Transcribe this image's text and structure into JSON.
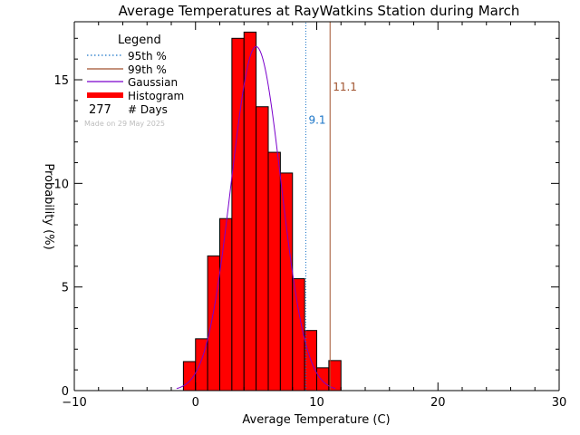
{
  "chart_data": {
    "type": "bar",
    "title": "Average Temperatures at RayWatkins Station during March",
    "xlabel": "Average Temperature (C)",
    "ylabel": "Probability  (%)",
    "xlim": [
      -10,
      30
    ],
    "ylim": [
      0,
      17.8
    ],
    "xticks": [
      -10,
      0,
      10,
      20,
      30
    ],
    "yticks": [
      0,
      5,
      10,
      15
    ],
    "grid": false,
    "legend": {
      "placement": "top-left",
      "title": "Legend",
      "entries": [
        {
          "label": "95th %",
          "color": "#1a75c8",
          "style": "dotted"
        },
        {
          "label": "99th %",
          "color": "#a0522d",
          "style": "solid"
        },
        {
          "label": "Gaussian",
          "color": "#7a00cc",
          "style": "solid"
        },
        {
          "label": "Histogram",
          "color": "#ff0000",
          "style": "thick"
        }
      ],
      "days_count": "277",
      "days_label": "# Days",
      "made_on": "Made on 29 May 2025"
    },
    "histogram": {
      "bin_width": 1,
      "bins": [
        {
          "x0": -1,
          "value": 1.4
        },
        {
          "x0": 0,
          "value": 2.5
        },
        {
          "x0": 1,
          "value": 6.5
        },
        {
          "x0": 2,
          "value": 8.3
        },
        {
          "x0": 3,
          "value": 17.0
        },
        {
          "x0": 4,
          "value": 17.3
        },
        {
          "x0": 5,
          "value": 13.7
        },
        {
          "x0": 6,
          "value": 11.5
        },
        {
          "x0": 7,
          "value": 10.5
        },
        {
          "x0": 8,
          "value": 5.4
        },
        {
          "x0": 9,
          "value": 2.9
        },
        {
          "x0": 10,
          "value": 1.1
        },
        {
          "x0": 11,
          "value": 1.45
        }
      ],
      "color": "#ff0000"
    },
    "gaussian": {
      "mean": 5.0,
      "sigma": 2.05,
      "peak": 16.6,
      "color": "#7a00cc"
    },
    "percentiles": [
      {
        "name": "95th %",
        "value": 9.1,
        "label": "9.1",
        "color": "#1a75c8",
        "style": "dotted",
        "label_y": 13.1
      },
      {
        "name": "99th %",
        "value": 11.1,
        "label": "11.1",
        "color": "#a0522d",
        "style": "solid",
        "label_y": 14.7
      }
    ]
  }
}
